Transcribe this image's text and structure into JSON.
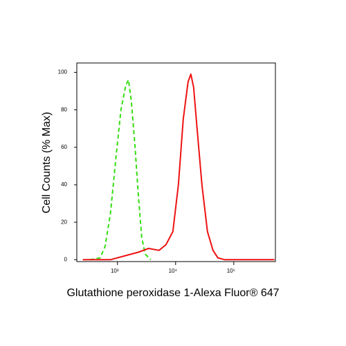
{
  "chart_data": {
    "type": "line",
    "xlabel": "Glutathione peroxidase 1-Alexa Fluor® 647",
    "ylabel": "Cell Counts (% Max)",
    "xscale": "log",
    "xlim": [
      200,
      520000
    ],
    "xticks": [
      {
        "value": 1000,
        "label": "10³"
      },
      {
        "value": 10000,
        "label": "10⁴"
      },
      {
        "value": 100000,
        "label": "10⁵"
      }
    ],
    "ylim": [
      -1,
      105
    ],
    "yticks": [
      0,
      20,
      40,
      60,
      80,
      100
    ],
    "series": [
      {
        "color": "#33dd11",
        "linestyle": "dashed",
        "x": [
          334,
          504,
          611,
          760,
          946,
          1148,
          1389,
          1550,
          1729,
          1985,
          2276,
          2611,
          2995,
          3727
        ],
        "values": [
          0,
          1,
          7,
          25,
          55,
          80,
          93,
          96,
          85,
          62,
          35,
          12,
          3,
          0
        ]
      },
      {
        "color": "#ee1111",
        "linestyle": "solid",
        "x": [
          254,
          760,
          1315,
          2276,
          3434,
          5179,
          6811,
          8960,
          11160,
          13530,
          16380,
          18280,
          20400,
          23400,
          28300,
          35300,
          43900,
          53200,
          70000,
          500000
        ],
        "values": [
          0,
          0,
          2,
          4,
          6,
          5,
          8,
          15,
          40,
          75,
          95,
          99,
          92,
          70,
          40,
          15,
          5,
          1,
          0,
          0
        ]
      }
    ]
  }
}
